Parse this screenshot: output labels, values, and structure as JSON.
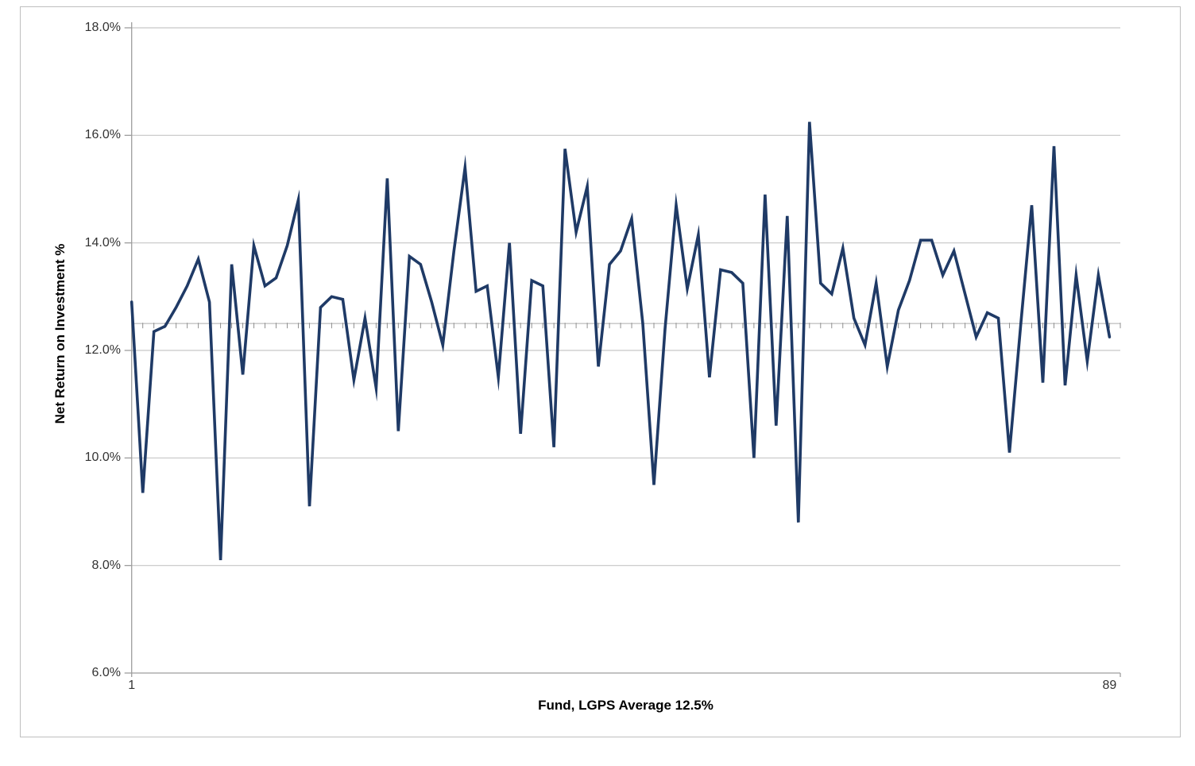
{
  "chart_data": {
    "type": "line",
    "title": "",
    "xlabel": "Fund, LGPS Average 12.5%",
    "ylabel": "Net Return on Investment %",
    "x_first_label": "1",
    "x_last_label": "89",
    "x_range": [
      1,
      89
    ],
    "ylim": [
      6,
      18
    ],
    "y_ticks": [
      {
        "value": 18,
        "label": "18.0%"
      },
      {
        "value": 16,
        "label": "16.0%"
      },
      {
        "value": 14,
        "label": "14.0%"
      },
      {
        "value": 12,
        "label": "12.0%"
      },
      {
        "value": 10,
        "label": "10.0%"
      },
      {
        "value": 8,
        "label": "8.0%"
      },
      {
        "value": 6,
        "label": "6.0%"
      }
    ],
    "average_line_value": 12.5,
    "grid": true,
    "legend": "none",
    "series_name": "Net Return on Investment %",
    "values": [
      12.9,
      9.35,
      12.35,
      12.45,
      12.8,
      13.2,
      13.7,
      12.9,
      8.1,
      13.6,
      11.55,
      13.95,
      13.2,
      13.35,
      13.95,
      14.8,
      9.1,
      12.8,
      13.0,
      12.95,
      11.45,
      12.6,
      11.3,
      15.2,
      10.5,
      13.75,
      13.6,
      12.9,
      12.1,
      13.85,
      15.4,
      13.1,
      13.2,
      11.5,
      14.0,
      10.45,
      13.3,
      13.2,
      10.2,
      15.75,
      14.2,
      15.05,
      11.7,
      13.6,
      13.85,
      14.45,
      12.5,
      9.5,
      12.4,
      14.7,
      13.15,
      14.15,
      11.5,
      13.5,
      13.45,
      13.25,
      10.0,
      14.9,
      10.6,
      14.5,
      8.8,
      16.25,
      13.25,
      13.05,
      13.9,
      12.6,
      12.1,
      13.25,
      11.7,
      12.75,
      13.3,
      14.05,
      14.05,
      13.4,
      13.85,
      13.05,
      12.25,
      12.7,
      12.6,
      10.1,
      12.45,
      14.7,
      11.4,
      15.8,
      11.35,
      13.4,
      11.8,
      13.4,
      12.25
    ],
    "colors": {
      "series_line": "#1f3a66",
      "gridline": "#c6c6c6",
      "axis_line": "#9d9d9d",
      "average_line": "#aeaeae",
      "average_tick": "#909090",
      "frame_border": "#bfbfbf",
      "tick_text": "#333333",
      "title_text": "#000000"
    }
  }
}
